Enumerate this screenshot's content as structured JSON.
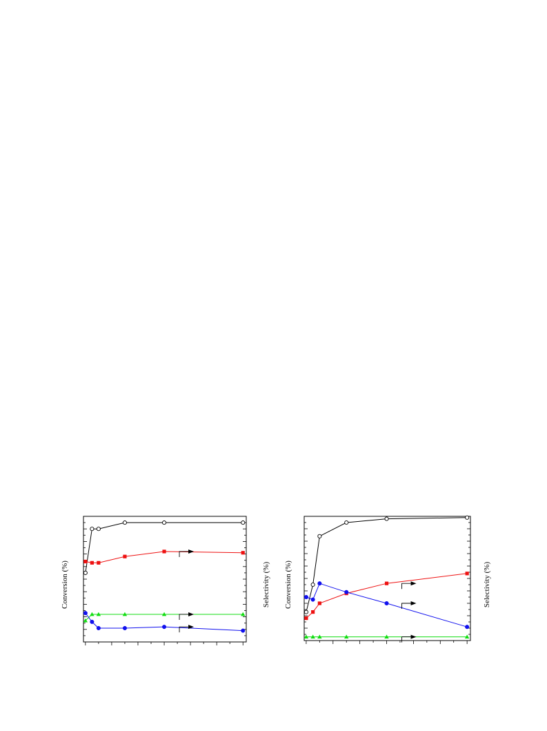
{
  "chart_data": [
    {
      "type": "line",
      "ylabel": "Conversion (%)",
      "y2label": "Selectivity (%)",
      "x": [
        0,
        1,
        2,
        6,
        12,
        24
      ],
      "xlim": [
        -0.3,
        24.5
      ],
      "ylim": [
        0,
        100
      ],
      "grid": false,
      "series": [
        {
          "marker": "open-circle",
          "color": "#000000",
          "axis": "left",
          "values": [
            55,
            90,
            90,
            95,
            95,
            95
          ]
        },
        {
          "marker": "square",
          "color": "#ee1111",
          "axis": "right",
          "values": [
            64,
            63,
            63,
            68,
            72,
            71
          ],
          "arrow": "right"
        },
        {
          "marker": "triangle",
          "color": "#11dd11",
          "axis": "right",
          "values": [
            17,
            22,
            22,
            22,
            22,
            22
          ],
          "arrow": "right"
        },
        {
          "marker": "circle",
          "color": "#1111ee",
          "axis": "right",
          "values": [
            23,
            16,
            11,
            11,
            12,
            9
          ],
          "arrow": "right"
        }
      ]
    },
    {
      "type": "line",
      "ylabel": "Conversion (%)",
      "y2label": "Selectivity (%)",
      "x": [
        0,
        1,
        2,
        6,
        12,
        24
      ],
      "xlim": [
        -0.3,
        24.5
      ],
      "ylim": [
        0,
        100
      ],
      "grid": false,
      "series": [
        {
          "marker": "open-circle",
          "color": "#000000",
          "axis": "left",
          "values": [
            23,
            45,
            84,
            95,
            98,
            99
          ]
        },
        {
          "marker": "square",
          "color": "#ee1111",
          "axis": "right",
          "values": [
            18,
            23,
            30,
            38,
            46,
            54
          ],
          "arrow": "right"
        },
        {
          "marker": "circle",
          "color": "#1111ee",
          "axis": "right",
          "values": [
            35,
            33,
            46,
            39,
            30,
            11
          ],
          "arrow": "right"
        },
        {
          "marker": "triangle",
          "color": "#11dd11",
          "axis": "right",
          "values": [
            3,
            3,
            3,
            3,
            3,
            3
          ],
          "arrow": "right"
        }
      ]
    }
  ]
}
